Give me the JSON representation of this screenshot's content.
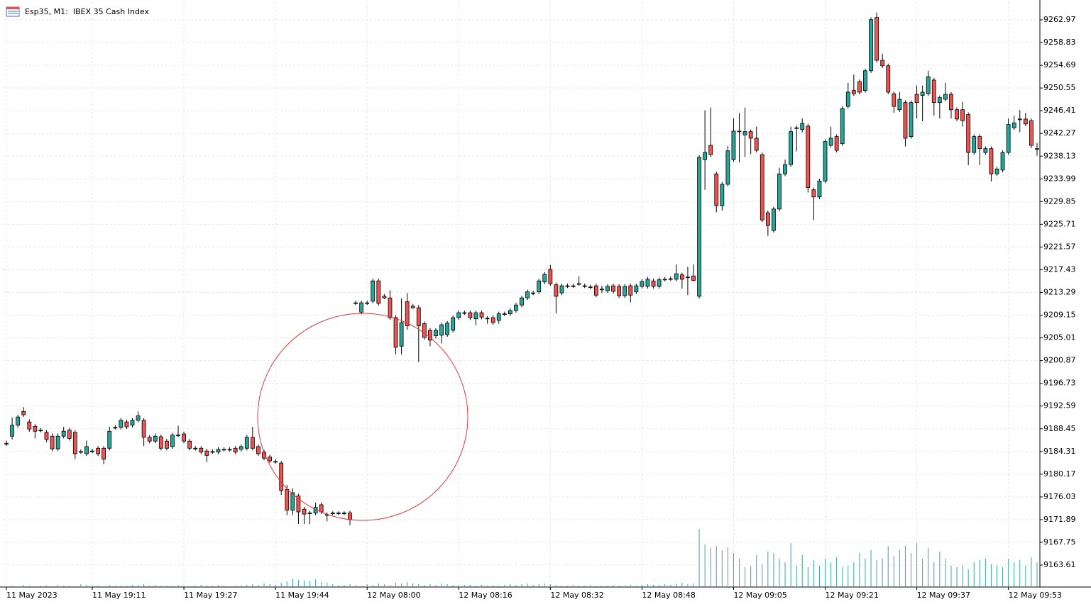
{
  "chart_data": {
    "type": "candlestick",
    "title": "Esp35, M1:  IBEX 35 Cash Index",
    "categories": [
      "11 May 2023",
      null,
      null,
      null,
      null,
      null,
      null,
      null,
      null,
      null,
      null,
      null,
      null,
      null,
      null,
      "11 May 19:11",
      null,
      null,
      null,
      null,
      null,
      null,
      null,
      null,
      null,
      null,
      null,
      null,
      null,
      null,
      null,
      "11 May 19:27",
      null,
      null,
      null,
      null,
      null,
      null,
      null,
      null,
      null,
      null,
      null,
      null,
      null,
      null,
      null,
      "11 May 19:44",
      null,
      null,
      null,
      null,
      null,
      null,
      null,
      null,
      null,
      null,
      null,
      null,
      null,
      null,
      null,
      "12 May 08:00",
      null,
      null,
      null,
      null,
      null,
      null,
      null,
      null,
      null,
      null,
      null,
      null,
      null,
      null,
      null,
      "12 May 08:16",
      null,
      null,
      null,
      null,
      null,
      null,
      null,
      null,
      null,
      null,
      null,
      null,
      null,
      null,
      null,
      "12 May 08:32",
      null,
      null,
      null,
      null,
      null,
      null,
      null,
      null,
      null,
      null,
      null,
      null,
      null,
      null,
      null,
      "12 May 08:48",
      null,
      null,
      null,
      null,
      null,
      null,
      null,
      null,
      null,
      null,
      null,
      null,
      null,
      null,
      null,
      "12 May 09:05",
      null,
      null,
      null,
      null,
      null,
      null,
      null,
      null,
      null,
      null,
      null,
      null,
      null,
      null,
      null,
      "12 May 09:21",
      null,
      null,
      null,
      null,
      null,
      null,
      null,
      null,
      null,
      null,
      null,
      null,
      null,
      null,
      null,
      "12 May 09:37",
      null,
      null,
      null,
      null,
      null,
      null,
      null,
      null,
      null,
      null,
      null,
      null,
      null,
      null,
      null,
      "12 May 09:53",
      null,
      null,
      null,
      null,
      null
    ],
    "open": [
      9185.8,
      9187.1,
      9189.1,
      9191.6,
      9189.7,
      9188.9,
      9188.2,
      9187.8,
      9187.1,
      9184.8,
      9187.1,
      9188.2,
      9187.8,
      9184.3,
      9183.9,
      9184.4,
      9184.9,
      9184.9,
      9184.9,
      9188.7,
      9188.7,
      9189.7,
      9189.1,
      9190.0,
      9190.0,
      9186.9,
      9186.2,
      9187.0,
      9186.2,
      9185.2,
      9187.3,
      9187.5,
      9186.2,
      9184.9,
      9184.9,
      9184.4,
      9184.3,
      9184.2,
      9184.7,
      9184.7,
      9184.9,
      9184.7,
      9184.9,
      9186.9,
      9185.2,
      9184.2,
      9183.3,
      9182.5,
      9182.2,
      9177.4,
      9173.6,
      9176.2,
      9173.8,
      9173.1,
      9173.1,
      9174.6,
      9172.8,
      9173.1,
      9173.1,
      9173.1,
      9173.1,
      9211.4,
      9209.7,
      9211.4,
      9211.7,
      9215.4,
      9212.6,
      9212.3,
      9208.7,
      9203.5,
      9211.6,
      9210.8,
      9210.5,
      9207.6,
      9206.4,
      9205.4,
      9205.5,
      9205.6,
      9206.4,
      9208.7,
      9209.6,
      9209.6,
      9208.5,
      9209.6,
      9208.6,
      9208.7,
      9208.2,
      9209.4,
      9209.4,
      9210.0,
      9211.0,
      9212.3,
      9213.2,
      9213.4,
      9215.2,
      9217.5,
      9214.7,
      9213.2,
      9214.5,
      9214.5,
      9214.9,
      9214.5,
      9214.3,
      9214.5,
      9213.9,
      9213.6,
      9214.5,
      9214.4,
      9212.7,
      9214.5,
      9213.4,
      9214.4,
      9214.4,
      9215.4,
      9214.4,
      9215.7,
      9215.8,
      9215.7,
      9216.5,
      9216.1,
      9216.3,
      9212.6,
      9237.5,
      9240.1,
      9234.9,
      9229.1,
      9233.0,
      9237.5,
      9242.7,
      9242.0,
      9242.6,
      9241.4,
      9238.4,
      9227.8,
      9224.6,
      9228.5,
      9234.9,
      9236.6,
      9243.3,
      9243.0,
      9243.6,
      9232.0,
      9230.7,
      9233.6,
      9240.1,
      9241.7,
      9240.4,
      9247.2,
      9250.1,
      9251.7,
      9250.1,
      9253.7,
      9263.4,
      9255.6,
      9254.6,
      9249.5,
      9246.6,
      9247.9,
      9241.7,
      9249.4,
      9249.2,
      9249.5,
      9252.0,
      9247.9,
      9248.5,
      9249.4,
      9246.6,
      9246.6,
      9245.7,
      9238.8,
      9241.7,
      9238.8,
      9239.5,
      9234.9,
      9235.6,
      9238.8,
      9243.3,
      9244.9,
      9244.9,
      9244.6,
      9239.5
    ],
    "high": [
      9186.3,
      9190.5,
      9191.0,
      9192.4,
      9190.2,
      9189.3,
      9188.6,
      9188.2,
      9187.6,
      9187.6,
      9188.8,
      9188.6,
      9188.2,
      9184.7,
      9186.3,
      9184.8,
      9185.3,
      9185.3,
      9188.8,
      9189.1,
      9190.4,
      9190.1,
      9190.4,
      9191.6,
      9190.4,
      9187.3,
      9187.6,
      9187.4,
      9186.6,
      9187.7,
      9189.0,
      9187.9,
      9186.6,
      9185.3,
      9185.3,
      9184.8,
      9184.7,
      9185.1,
      9185.1,
      9185.1,
      9185.3,
      9185.6,
      9187.3,
      9188.8,
      9185.6,
      9184.6,
      9183.7,
      9182.9,
      9182.6,
      9178.2,
      9177.6,
      9176.6,
      9174.2,
      9173.5,
      9175.0,
      9175.0,
      9173.2,
      9173.4,
      9173.4,
      9173.4,
      9173.5,
      9211.8,
      9211.8,
      9211.8,
      9215.8,
      9215.8,
      9213.0,
      9213.7,
      9209.1,
      9212.2,
      9213.2,
      9211.2,
      9211.0,
      9208.0,
      9206.8,
      9206.8,
      9207.8,
      9208.1,
      9209.1,
      9210.0,
      9210.0,
      9210.0,
      9210.0,
      9210.0,
      9209.0,
      9209.1,
      9209.8,
      9209.8,
      9210.4,
      9211.4,
      9212.7,
      9213.8,
      9213.6,
      9215.8,
      9217.0,
      9218.3,
      9215.1,
      9214.9,
      9214.9,
      9214.9,
      9216.2,
      9214.9,
      9214.7,
      9214.9,
      9214.5,
      9214.8,
      9214.9,
      9214.8,
      9214.8,
      9214.9,
      9214.9,
      9215.7,
      9216.1,
      9215.8,
      9216.0,
      9216.1,
      9216.2,
      9218.4,
      9216.9,
      9218.0,
      9218.4,
      9238.3,
      9246.5,
      9247.0,
      9235.3,
      9233.4,
      9240.0,
      9245.0,
      9246.0,
      9247.0,
      9243.0,
      9243.5,
      9238.8,
      9228.2,
      9228.9,
      9236.0,
      9237.5,
      9243.5,
      9243.7,
      9245.0,
      9244.0,
      9232.4,
      9234.0,
      9241.2,
      9243.5,
      9242.1,
      9247.2,
      9251.5,
      9253.0,
      9252.1,
      9254.1,
      9263.4,
      9264.3,
      9256.8,
      9255.0,
      9249.9,
      9249.8,
      9248.3,
      9248.3,
      9251.0,
      9251.0,
      9253.7,
      9252.4,
      9249.2,
      9251.5,
      9249.8,
      9247.0,
      9248.0,
      9246.1,
      9242.1,
      9242.1,
      9239.9,
      9239.9,
      9236.2,
      9239.2,
      9245.0,
      9245.5,
      9246.5,
      9246.0,
      9245.0,
      9240.5
    ],
    "low": [
      9185.3,
      9186.5,
      9188.6,
      9190.6,
      9187.9,
      9186.7,
      9187.8,
      9186.0,
      9184.4,
      9184.4,
      9186.7,
      9186.3,
      9182.9,
      9183.9,
      9183.5,
      9184.0,
      9183.5,
      9182.0,
      9184.5,
      9188.3,
      9188.3,
      9188.4,
      9188.7,
      9189.6,
      9185.3,
      9185.8,
      9185.8,
      9184.5,
      9184.5,
      9184.8,
      9186.9,
      9185.8,
      9184.5,
      9184.5,
      9183.8,
      9182.4,
      9183.9,
      9183.8,
      9184.3,
      9184.3,
      9183.8,
      9184.3,
      9184.5,
      9184.5,
      9183.5,
      9182.7,
      9182.2,
      9182.1,
      9176.4,
      9172.7,
      9172.7,
      9171.1,
      9171.1,
      9171.1,
      9172.7,
      9172.9,
      9171.6,
      9172.7,
      9172.7,
      9172.7,
      9170.9,
      9211.0,
      9209.3,
      9211.0,
      9211.3,
      9210.9,
      9212.1,
      9208.3,
      9202.0,
      9202.0,
      9206.5,
      9210.3,
      9200.6,
      9204.7,
      9203.5,
      9204.9,
      9204.0,
      9205.2,
      9206.0,
      9208.3,
      9209.2,
      9208.3,
      9207.3,
      9208.4,
      9207.6,
      9207.4,
      9207.6,
      9209.0,
      9209.0,
      9209.6,
      9210.6,
      9211.9,
      9212.8,
      9213.0,
      9214.8,
      9214.5,
      9209.5,
      9212.8,
      9214.1,
      9214.1,
      9214.5,
      9214.1,
      9213.9,
      9212.4,
      9213.2,
      9213.2,
      9213.1,
      9212.3,
      9212.3,
      9211.5,
      9213.0,
      9214.0,
      9214.0,
      9214.0,
      9214.0,
      9215.3,
      9215.4,
      9215.3,
      9214.0,
      9212.8,
      9215.3,
      9212.2,
      9232.0,
      9238.0,
      9227.9,
      9228.2,
      9232.6,
      9237.1,
      9237.0,
      9238.0,
      9238.5,
      9238.8,
      9226.1,
      9223.6,
      9224.2,
      9228.1,
      9234.5,
      9236.2,
      9239.0,
      9242.5,
      9231.5,
      9226.5,
      9230.3,
      9233.2,
      9239.7,
      9238.8,
      9240.0,
      9246.8,
      9249.1,
      9249.4,
      9249.7,
      9253.3,
      9255.2,
      9254.2,
      9249.4,
      9246.0,
      9246.2,
      9239.9,
      9241.3,
      9245.0,
      9244.5,
      9249.1,
      9245.5,
      9245.0,
      9248.1,
      9245.0,
      9244.5,
      9243.5,
      9236.5,
      9238.4,
      9236.5,
      9238.4,
      9233.5,
      9234.5,
      9235.2,
      9238.4,
      9242.9,
      9242.5,
      9243.6,
      9239.6,
      9238.2
    ],
    "close": [
      9185.8,
      9189.1,
      9190.6,
      9191.0,
      9188.4,
      9188.0,
      9188.2,
      9186.5,
      9184.8,
      9187.1,
      9188.0,
      9186.7,
      9183.9,
      9184.3,
      9185.2,
      9184.4,
      9183.9,
      9182.9,
      9188.0,
      9188.7,
      9190.0,
      9188.8,
      9190.0,
      9190.8,
      9186.9,
      9186.2,
      9187.1,
      9184.9,
      9184.9,
      9187.3,
      9187.3,
      9186.2,
      9184.9,
      9184.9,
      9184.2,
      9183.6,
      9184.3,
      9184.7,
      9184.7,
      9184.7,
      9184.2,
      9185.2,
      9186.9,
      9184.9,
      9183.9,
      9183.1,
      9182.6,
      9182.5,
      9177.2,
      9173.6,
      9176.8,
      9173.3,
      9172.9,
      9173.1,
      9174.1,
      9173.3,
      9172.8,
      9173.1,
      9173.1,
      9173.1,
      9171.9,
      9211.4,
      9211.4,
      9211.4,
      9215.4,
      9211.3,
      9212.3,
      9208.7,
      9203.3,
      9207.8,
      9207.2,
      9210.5,
      9207.2,
      9205.1,
      9204.6,
      9206.4,
      9207.4,
      9207.7,
      9208.7,
      9209.6,
      9209.6,
      9208.7,
      9209.6,
      9208.8,
      9208.6,
      9207.8,
      9209.4,
      9209.4,
      9210.0,
      9211.0,
      9212.3,
      9213.4,
      9213.2,
      9215.4,
      9216.6,
      9214.9,
      9212.6,
      9214.5,
      9214.5,
      9214.5,
      9214.9,
      9214.5,
      9214.3,
      9212.8,
      9213.9,
      9214.4,
      9213.5,
      9212.7,
      9214.4,
      9212.8,
      9214.5,
      9215.3,
      9215.7,
      9214.4,
      9215.6,
      9215.7,
      9215.8,
      9216.7,
      9215.7,
      9216.1,
      9215.5,
      9237.9,
      9238.8,
      9238.4,
      9229.1,
      9233.0,
      9239.1,
      9242.7,
      9242.7,
      9242.6,
      9241.4,
      9239.2,
      9226.5,
      9225.5,
      9228.5,
      9234.9,
      9236.6,
      9242.6,
      9243.3,
      9244.1,
      9232.4,
      9230.7,
      9233.6,
      9240.8,
      9241.4,
      9239.2,
      9246.8,
      9249.8,
      9249.5,
      9249.8,
      9253.7,
      9263.0,
      9255.6,
      9254.6,
      9249.8,
      9247.2,
      9248.5,
      9241.4,
      9247.9,
      9247.9,
      9249.8,
      9252.6,
      9247.9,
      9248.8,
      9249.4,
      9246.6,
      9244.9,
      9244.6,
      9238.8,
      9241.7,
      9239.5,
      9239.5,
      9234.9,
      9235.8,
      9238.8,
      9243.9,
      9244.2,
      9244.9,
      9244.0,
      9240.1,
      9239.5
    ],
    "volume": [
      1,
      2,
      1,
      3,
      2,
      1,
      2,
      2,
      1,
      3,
      2,
      2,
      1,
      4,
      3,
      2,
      2,
      1,
      3,
      2,
      2,
      2,
      3,
      3,
      4,
      2,
      3,
      2,
      2,
      2,
      3,
      2,
      1,
      2,
      3,
      2,
      2,
      3,
      2,
      1,
      2,
      2,
      3,
      4,
      3,
      5,
      4,
      3,
      6,
      8,
      12,
      10,
      9,
      8,
      11,
      7,
      6,
      4,
      3,
      3,
      4,
      3,
      2,
      4,
      3,
      5,
      4,
      3,
      6,
      5,
      7,
      5,
      4,
      3,
      4,
      3,
      5,
      4,
      3,
      2,
      3,
      3,
      2,
      3,
      2,
      3,
      2,
      3,
      4,
      3,
      4,
      5,
      3,
      4,
      5,
      4,
      3,
      2,
      2,
      3,
      2,
      2,
      3,
      2,
      2,
      2,
      3,
      2,
      2,
      3,
      2,
      3,
      4,
      3,
      3,
      4,
      3,
      5,
      6,
      4,
      5,
      82,
      60,
      55,
      58,
      52,
      56,
      48,
      40,
      28,
      30,
      45,
      32,
      50,
      48,
      40,
      35,
      62,
      30,
      45,
      28,
      38,
      30,
      40,
      35,
      42,
      28,
      30,
      35,
      48,
      40,
      52,
      38,
      40,
      58,
      44,
      52,
      58,
      48,
      62,
      40,
      55,
      35,
      50,
      40,
      30,
      28,
      30,
      25,
      35,
      38,
      40,
      32,
      30,
      28,
      40,
      35,
      38,
      30,
      42,
      35
    ],
    "up_color": "#26a69a",
    "down_color": "#ef5350",
    "volume_color": "#3aa89f",
    "ylim": [
      9159.61,
      9266.33
    ],
    "yticks": [
      9262.97,
      9258.83,
      9254.69,
      9250.55,
      9246.41,
      9242.27,
      9238.13,
      9233.99,
      9229.85,
      9225.71,
      9221.57,
      9217.43,
      9213.29,
      9209.15,
      9205.01,
      9200.87,
      9196.73,
      9192.59,
      9188.45,
      9184.31,
      9180.17,
      9176.03,
      9171.89,
      9167.75,
      9163.61
    ],
    "grid": true
  }
}
